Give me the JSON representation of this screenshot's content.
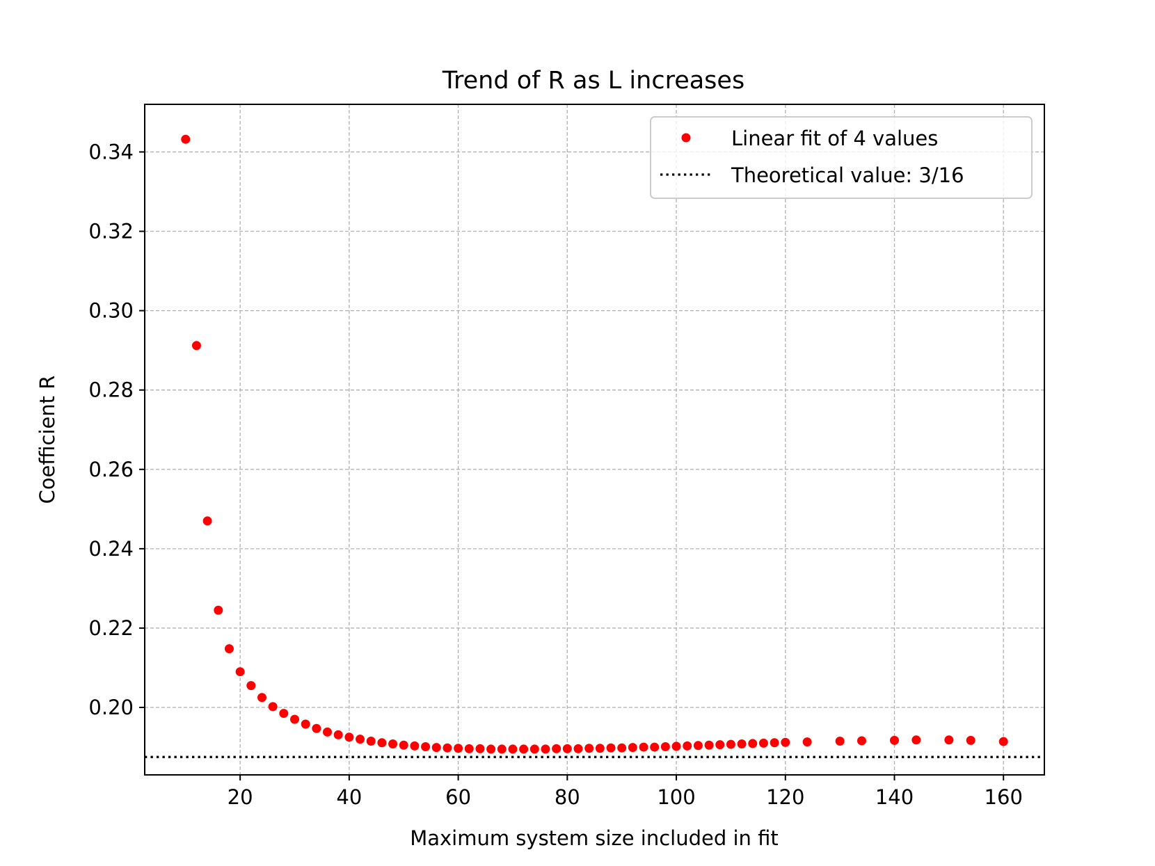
{
  "chart_data": {
    "type": "scatter",
    "title": "Trend of R as L increases",
    "xlabel": "Maximum system size included in fit",
    "ylabel": "Coefficient R",
    "xlim": [
      2.5,
      167.5
    ],
    "ylim": [
      0.183,
      0.352
    ],
    "xticks": [
      20,
      40,
      60,
      80,
      100,
      120,
      140,
      160
    ],
    "yticks": [
      0.2,
      0.22,
      0.24,
      0.26,
      0.28,
      0.3,
      0.32,
      0.34
    ],
    "xtick_labels": [
      "20",
      "40",
      "60",
      "80",
      "100",
      "120",
      "140",
      "160"
    ],
    "ytick_labels": [
      "0.20",
      "0.22",
      "0.24",
      "0.26",
      "0.28",
      "0.30",
      "0.32",
      "0.34"
    ],
    "grid": true,
    "legend_position": "top-right",
    "series": [
      {
        "name": "Linear fit of 4 values",
        "type": "scatter",
        "color": "#ff0000",
        "x": [
          10,
          12,
          14,
          16,
          18,
          20,
          22,
          24,
          26,
          28,
          30,
          32,
          34,
          36,
          38,
          40,
          42,
          44,
          46,
          48,
          50,
          52,
          54,
          56,
          58,
          60,
          62,
          64,
          66,
          68,
          70,
          72,
          74,
          76,
          78,
          80,
          82,
          84,
          86,
          88,
          90,
          92,
          94,
          96,
          98,
          100,
          102,
          104,
          106,
          108,
          110,
          112,
          114,
          116,
          118,
          120,
          124,
          130,
          134,
          140,
          144,
          150,
          154,
          160
        ],
        "y": [
          0.3432,
          0.2912,
          0.247,
          0.2245,
          0.2148,
          0.209,
          0.2055,
          0.2025,
          0.2002,
          0.1985,
          0.197,
          0.1958,
          0.1947,
          0.1938,
          0.1931,
          0.1925,
          0.192,
          0.1915,
          0.1911,
          0.1908,
          0.1905,
          0.1903,
          0.1901,
          0.1899,
          0.1898,
          0.1897,
          0.1896,
          0.1896,
          0.1895,
          0.1895,
          0.1895,
          0.1895,
          0.1895,
          0.1895,
          0.1896,
          0.1896,
          0.1896,
          0.1897,
          0.1897,
          0.1898,
          0.1898,
          0.1899,
          0.19,
          0.19,
          0.1901,
          0.1902,
          0.1903,
          0.1904,
          0.1905,
          0.1906,
          0.1907,
          0.1908,
          0.1909,
          0.191,
          0.1911,
          0.1912,
          0.1913,
          0.1915,
          0.1916,
          0.1917,
          0.1918,
          0.1918,
          0.1917,
          0.1914
        ]
      },
      {
        "name": "Theoretical value: 3/16",
        "type": "hline",
        "color": "#000000",
        "y": 0.1875
      }
    ]
  }
}
